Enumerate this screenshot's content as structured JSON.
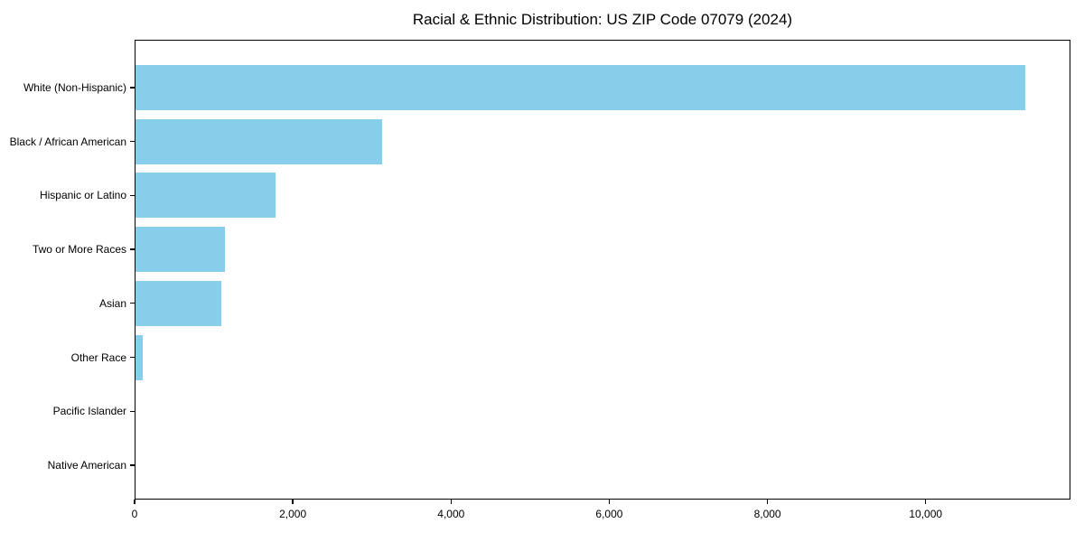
{
  "chart_data": {
    "type": "bar",
    "orientation": "horizontal",
    "title": "Racial & Ethnic Distribution: US ZIP Code 07079 (2024)",
    "categories": [
      "White (Non-Hispanic)",
      "Black / African American",
      "Hispanic or Latino",
      "Two or More Races",
      "Asian",
      "Other Race",
      "Pacific Islander",
      "Native American"
    ],
    "values": [
      11260,
      3130,
      1780,
      1140,
      1100,
      100,
      0,
      0
    ],
    "xlabel": "",
    "ylabel": "",
    "xlim": [
      0,
      11830
    ],
    "x_ticks": [
      0,
      2000,
      4000,
      6000,
      8000,
      10000
    ],
    "x_tick_labels": [
      "0",
      "2,000",
      "4,000",
      "6,000",
      "8,000",
      "10,000"
    ],
    "bar_color": "#87CEEB",
    "frame_color": "#000000",
    "background": "#ffffff",
    "grid": false,
    "legend": null
  }
}
